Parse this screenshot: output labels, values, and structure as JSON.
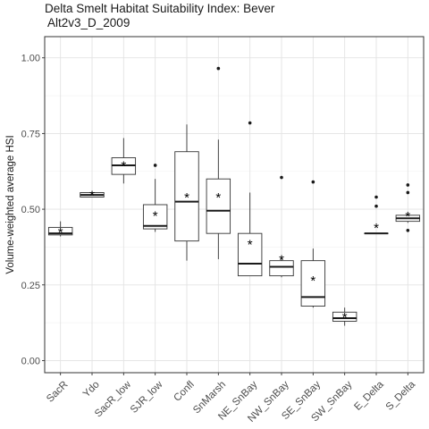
{
  "chart_data": {
    "type": "box",
    "title_lines": [
      "Delta Smelt Habitat Suitability Index: Bever",
      " Alt2v3_D_2009"
    ],
    "xlabel": "",
    "ylabel": "Volume-weighted average HSI",
    "ylim": [
      -0.04,
      1.07
    ],
    "yticks": [
      0.0,
      0.25,
      0.5,
      0.75,
      1.0
    ],
    "ytick_labels": [
      "0.00",
      "0.25",
      "0.50",
      "0.75",
      "1.00"
    ],
    "grid": true,
    "categories": [
      "SacR",
      "Ydo",
      "SacR_low",
      "SJR_low",
      "Confl",
      "SnMarsh",
      "NE_SnBay",
      "NW_SnBay",
      "SE_SnBay",
      "SW_SnBay",
      "E_Delta",
      "S_Delta"
    ],
    "boxes": [
      {
        "category": "SacR",
        "min": 0.41,
        "q1": 0.415,
        "median": 0.42,
        "q3": 0.44,
        "max": 0.46,
        "mean": 0.425,
        "outliers": []
      },
      {
        "category": "Ydo",
        "min": 0.54,
        "q1": 0.54,
        "median": 0.547,
        "q3": 0.555,
        "max": 0.56,
        "mean": 0.548,
        "outliers": []
      },
      {
        "category": "SacR_low",
        "min": 0.585,
        "q1": 0.615,
        "median": 0.645,
        "q3": 0.67,
        "max": 0.735,
        "mean": 0.645,
        "outliers": []
      },
      {
        "category": "SJR_low",
        "min": 0.425,
        "q1": 0.435,
        "median": 0.445,
        "q3": 0.515,
        "max": 0.6,
        "mean": 0.48,
        "outliers": [
          0.645
        ]
      },
      {
        "category": "Confl",
        "min": 0.33,
        "q1": 0.395,
        "median": 0.525,
        "q3": 0.69,
        "max": 0.78,
        "mean": 0.54,
        "outliers": []
      },
      {
        "category": "SnMarsh",
        "min": 0.335,
        "q1": 0.42,
        "median": 0.495,
        "q3": 0.6,
        "max": 0.73,
        "mean": 0.54,
        "outliers": [
          0.965
        ]
      },
      {
        "category": "NE_SnBay",
        "min": 0.28,
        "q1": 0.28,
        "median": 0.32,
        "q3": 0.42,
        "max": 0.555,
        "mean": 0.385,
        "outliers": [
          0.785
        ]
      },
      {
        "category": "NW_SnBay",
        "min": 0.275,
        "q1": 0.28,
        "median": 0.31,
        "q3": 0.33,
        "max": 0.345,
        "mean": 0.335,
        "outliers": [
          0.605
        ]
      },
      {
        "category": "SE_SnBay",
        "min": 0.175,
        "q1": 0.18,
        "median": 0.21,
        "q3": 0.33,
        "max": 0.37,
        "mean": 0.265,
        "outliers": [
          0.59
        ]
      },
      {
        "category": "SW_SnBay",
        "min": 0.115,
        "q1": 0.13,
        "median": 0.14,
        "q3": 0.16,
        "max": 0.175,
        "mean": 0.145,
        "outliers": []
      },
      {
        "category": "E_Delta",
        "min": 0.42,
        "q1": 0.42,
        "median": 0.42,
        "q3": 0.42,
        "max": 0.42,
        "mean": 0.44,
        "outliers": [
          0.51,
          0.54
        ]
      },
      {
        "category": "S_Delta",
        "min": 0.455,
        "q1": 0.46,
        "median": 0.47,
        "q3": 0.48,
        "max": 0.485,
        "mean": 0.478,
        "outliers": [
          0.43,
          0.555,
          0.58
        ]
      }
    ]
  }
}
